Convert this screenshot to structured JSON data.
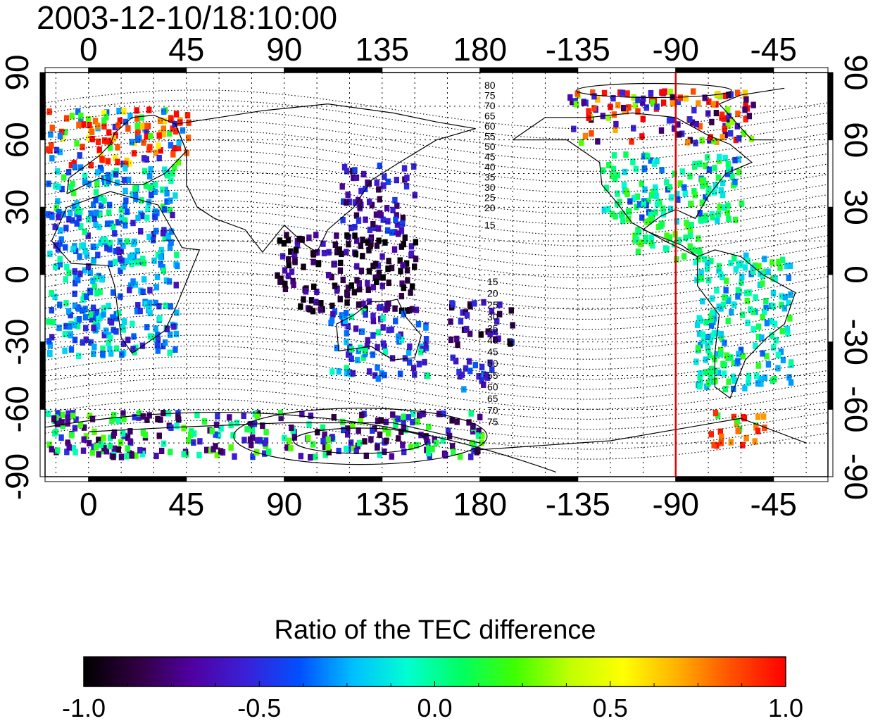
{
  "title": "2003-12-10/18:10:00",
  "map": {
    "lon_tick_labels": [
      "0",
      "45",
      "90",
      "135",
      "180",
      "-135",
      "-90",
      "-45"
    ],
    "lat_tick_labels": [
      "90",
      "60",
      "30",
      "0",
      "-30",
      "-60",
      "-90"
    ],
    "graticule": "dotted",
    "marker_line_longitude": -90,
    "marker_line_color": "#e00000",
    "contour_labels_north": [
      "80",
      "75",
      "70",
      "65",
      "60",
      "55",
      "50",
      "45",
      "40",
      "35",
      "30",
      "25",
      "20",
      "15"
    ],
    "contour_labels_south": [
      "15",
      "20",
      "25",
      "30",
      "35",
      "40",
      "45",
      "50",
      "55",
      "60",
      "65",
      "70",
      "75"
    ]
  },
  "colorbar": {
    "title": "Ratio of the TEC difference",
    "tick_labels": [
      "-1.0",
      "-0.5",
      "0.0",
      "0.5",
      "1.0"
    ],
    "range": [
      -1.0,
      1.0
    ],
    "palette": [
      "#000000",
      "#300040",
      "#5000a0",
      "#3a20d8",
      "#0050ff",
      "#00c0ff",
      "#00ffd0",
      "#00ff60",
      "#40ff00",
      "#c0ff00",
      "#ffff00",
      "#ffb000",
      "#ff5000",
      "#ff0000"
    ]
  },
  "regions": [
    {
      "name": "europe",
      "lon": [
        -20,
        45
      ],
      "lat": [
        50,
        75
      ],
      "values": [
        0.9,
        0.8,
        0.95,
        -0.3,
        -0.5,
        0.2,
        1.0,
        0.6
      ]
    },
    {
      "name": "europe-south",
      "lon": [
        -20,
        40
      ],
      "lat": [
        28,
        50
      ],
      "values": [
        -0.3,
        -0.2,
        -0.4,
        0.1,
        0.0,
        -0.35
      ]
    },
    {
      "name": "north-america",
      "lon": [
        -125,
        -60
      ],
      "lat": [
        25,
        55
      ],
      "values": [
        -0.05,
        0.0,
        0.05,
        -0.15,
        0.1,
        -0.4,
        0.15
      ]
    },
    {
      "name": "arctic-canada",
      "lon": [
        -140,
        -55
      ],
      "lat": [
        60,
        83
      ],
      "values": [
        0.9,
        -0.6,
        1.0,
        -0.5,
        0.3,
        -0.8,
        0.7
      ]
    },
    {
      "name": "central-america",
      "lon": [
        -110,
        -80
      ],
      "lat": [
        8,
        25
      ],
      "values": [
        0.1,
        0.05,
        0.2,
        0.0
      ]
    },
    {
      "name": "south-america",
      "lon": [
        -82,
        -38
      ],
      "lat": [
        -50,
        10
      ],
      "values": [
        -0.1,
        0.0,
        -0.2,
        0.15,
        -0.3
      ]
    },
    {
      "name": "japan-china",
      "lon": [
        115,
        150
      ],
      "lat": [
        20,
        50
      ],
      "values": [
        -0.6,
        -0.5,
        -0.7,
        -0.45,
        -0.8
      ]
    },
    {
      "name": "southeast-asia",
      "lon": [
        85,
        150
      ],
      "lat": [
        -15,
        20
      ],
      "values": [
        -0.95,
        -0.85,
        -0.7,
        -0.9,
        -0.6,
        -1.0
      ]
    },
    {
      "name": "australia",
      "lon": [
        110,
        155
      ],
      "lat": [
        -45,
        -15
      ],
      "values": [
        -0.55,
        -0.4,
        -0.6,
        0.0,
        -0.3
      ]
    },
    {
      "name": "new-zealand",
      "lon": [
        165,
        185
      ],
      "lat": [
        -50,
        -35
      ],
      "values": [
        -0.5,
        -0.45,
        -0.3,
        -0.6
      ]
    },
    {
      "name": "pacific",
      "lon": [
        165,
        195
      ],
      "lat": [
        -30,
        -10
      ],
      "values": [
        -0.6,
        -0.8,
        -0.5,
        -0.9
      ]
    },
    {
      "name": "africa",
      "lon": [
        -20,
        40
      ],
      "lat": [
        -35,
        30
      ],
      "values": [
        -0.2,
        -0.4,
        0.0,
        -0.3,
        -0.55
      ]
    },
    {
      "name": "antarctic",
      "lon": [
        -20,
        180
      ],
      "lat": [
        -80,
        -60
      ],
      "values": [
        -0.7,
        -0.5,
        0.0,
        0.2,
        -0.8
      ]
    },
    {
      "name": "antarctic-peninsula",
      "lon": [
        -75,
        -50
      ],
      "lat": [
        -75,
        -60
      ],
      "values": [
        1.0,
        0.8,
        0.1,
        0.9
      ]
    }
  ]
}
